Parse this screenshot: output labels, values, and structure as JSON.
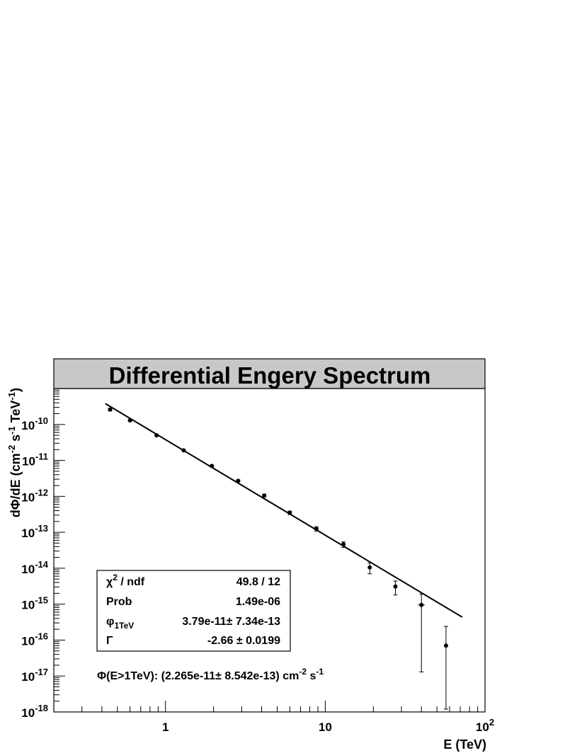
{
  "chart_data": {
    "type": "scatter",
    "title": "Differential Engery Spectrum",
    "xlabel": "E (TeV)",
    "ylabel_parts": [
      "dΦ/dE (cm",
      "-2",
      " s",
      "-1",
      " TeV",
      "-1",
      ")"
    ],
    "x_scale": "log",
    "y_scale": "log",
    "xlim": [
      0.2,
      100
    ],
    "ylim": [
      1e-18,
      1e-09
    ],
    "grid": false,
    "x_tick_labels": [
      {
        "value": 1,
        "base": "1",
        "exp": ""
      },
      {
        "value": 10,
        "base": "10",
        "exp": ""
      },
      {
        "value": 100,
        "base": "10",
        "exp": "2"
      }
    ],
    "y_tick_labels": [
      {
        "value": 1e-10,
        "base": "10",
        "exp": "-10"
      },
      {
        "value": 1e-11,
        "base": "10",
        "exp": "-11"
      },
      {
        "value": 1e-12,
        "base": "10",
        "exp": "-12"
      },
      {
        "value": 1e-13,
        "base": "10",
        "exp": "-13"
      },
      {
        "value": 1e-14,
        "base": "10",
        "exp": "-14"
      },
      {
        "value": 1e-15,
        "base": "10",
        "exp": "-15"
      },
      {
        "value": 1e-16,
        "base": "10",
        "exp": "-16"
      },
      {
        "value": 1e-17,
        "base": "10",
        "exp": "-17"
      },
      {
        "value": 1e-18,
        "base": "10",
        "exp": "-18"
      }
    ],
    "points": [
      {
        "x": 0.45,
        "y": 2.6e-10,
        "ylo": 2.4e-10,
        "yhi": 2.8e-10,
        "xlo": 0.45,
        "xhi": 0.45
      },
      {
        "x": 0.6,
        "y": 1.3e-10,
        "ylo": 1.24e-10,
        "yhi": 1.36e-10,
        "xlo": 0.6,
        "xhi": 0.6
      },
      {
        "x": 0.88,
        "y": 5e-11,
        "ylo": 4.8e-11,
        "yhi": 5.2e-11,
        "xlo": 0.88,
        "xhi": 0.88
      },
      {
        "x": 1.3,
        "y": 1.9e-11,
        "ylo": 1.83e-11,
        "yhi": 1.97e-11,
        "xlo": 1.3,
        "xhi": 1.3
      },
      {
        "x": 1.95,
        "y": 7e-12,
        "ylo": 6.7e-12,
        "yhi": 7.3e-12,
        "xlo": 1.95,
        "xhi": 1.95
      },
      {
        "x": 2.85,
        "y": 2.7e-12,
        "ylo": 2.55e-12,
        "yhi": 2.85e-12,
        "xlo": 2.85,
        "xhi": 2.85
      },
      {
        "x": 4.15,
        "y": 1.05e-12,
        "ylo": 9.6e-13,
        "yhi": 1.15e-12,
        "xlo": 4.15,
        "xhi": 4.15
      },
      {
        "x": 6.0,
        "y": 3.5e-13,
        "ylo": 3.1e-13,
        "yhi": 3.9e-13,
        "xlo": 6.0,
        "xhi": 6.0
      },
      {
        "x": 8.8,
        "y": 1.25e-13,
        "ylo": 1.08e-13,
        "yhi": 1.42e-13,
        "xlo": 8.8,
        "xhi": 8.8
      },
      {
        "x": 13.0,
        "y": 4.6e-14,
        "ylo": 3.8e-14,
        "yhi": 5.4e-14,
        "xlo": 13.0,
        "xhi": 13.0
      },
      {
        "x": 19.0,
        "y": 1.05e-14,
        "ylo": 7e-15,
        "yhi": 1.4e-14,
        "xlo": 19.0,
        "xhi": 19.0
      },
      {
        "x": 27.5,
        "y": 3.1e-15,
        "ylo": 1.8e-15,
        "yhi": 4.4e-15,
        "xlo": 27.5,
        "xhi": 27.5
      },
      {
        "x": 40.0,
        "y": 9.5e-16,
        "ylo": 1.3e-17,
        "yhi": 1.9e-15,
        "xlo": 38.0,
        "xhi": 42.0
      },
      {
        "x": 57.0,
        "y": 7e-17,
        "ylo": 1.2e-18,
        "yhi": 2.4e-16,
        "xlo": 57.0,
        "xhi": 57.0
      }
    ],
    "fit": {
      "type": "power-law",
      "phi_1TeV": 3.79e-11,
      "gamma": -2.66,
      "x_range": [
        0.42,
        72
      ]
    },
    "stats": {
      "rows": [
        {
          "label_main": "χ",
          "label_sup": "2",
          "label_rest": " / ndf",
          "label_sub": "",
          "value": "49.8 / 12"
        },
        {
          "label_main": "Prob",
          "label_sup": "",
          "label_rest": "",
          "label_sub": "",
          "value": "1.49e-06"
        },
        {
          "label_main": "φ",
          "label_sup": "",
          "label_rest": "",
          "label_sub": "1TeV",
          "value": "3.79e-11± 7.34e-13"
        },
        {
          "label_main": "Γ",
          "label_sup": "",
          "label_rest": "",
          "label_sub": "",
          "value": "-2.66 ± 0.0199"
        }
      ]
    },
    "annotation": {
      "prefix": "Φ(E>1TeV): (2.265e-11± 8.542e-13) cm",
      "exp1": "-2",
      "mid": " s",
      "exp2": "-1"
    }
  }
}
